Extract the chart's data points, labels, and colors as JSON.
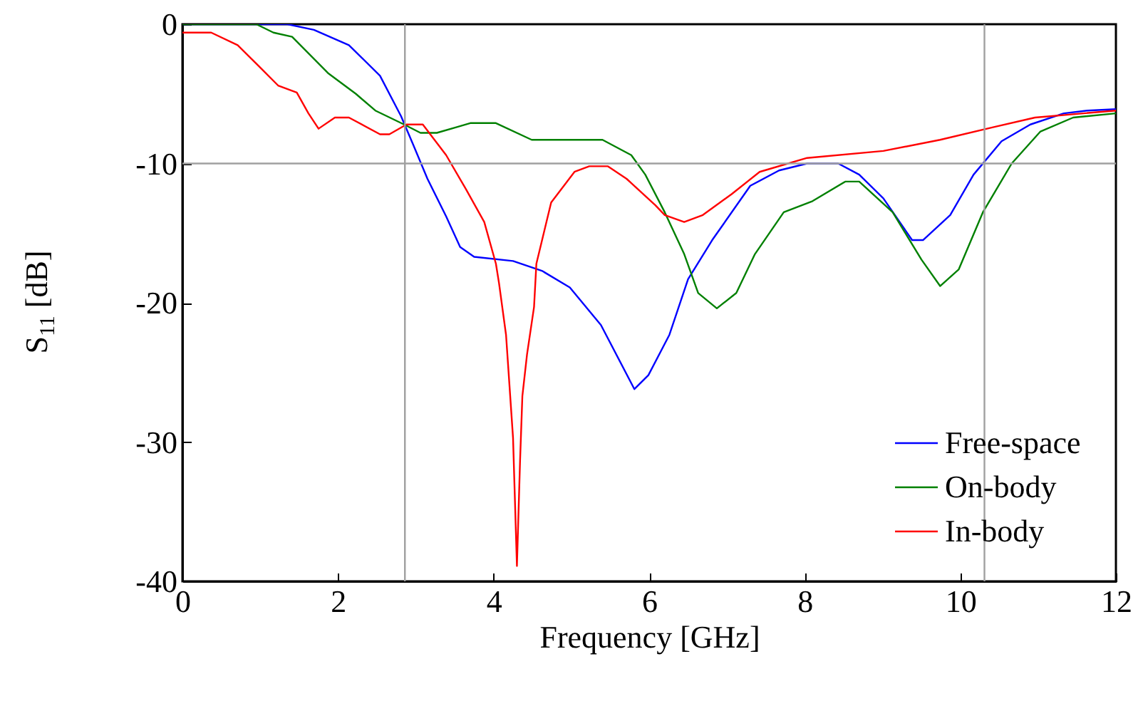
{
  "chart_data": {
    "type": "line",
    "xlabel": "Frequency [GHz]",
    "ylabel": "S$_{11}$ [dB]",
    "xlim": [
      0,
      12
    ],
    "ylim": [
      -40,
      0
    ],
    "xticks": [
      0,
      2,
      4,
      6,
      8,
      10,
      12
    ],
    "yticks": [
      -40,
      -30,
      -20,
      -10,
      0
    ],
    "legend": "bottom right",
    "line_style": "solid",
    "marker": "none",
    "ref_lines": [
      {
        "axis": "x",
        "value": 2.86,
        "color": "#a0a0a0"
      },
      {
        "axis": "x",
        "value": 10.31,
        "color": "#a0a0a0"
      },
      {
        "axis": "y",
        "value": -10,
        "color": "#a0a0a0"
      }
    ],
    "series": [
      {
        "name": "Free-space",
        "color": "#0000ff",
        "x": [
          0,
          1.35,
          1.69,
          2.14,
          2.54,
          2.81,
          2.97,
          3.15,
          3.39,
          3.57,
          3.75,
          4.25,
          4.62,
          4.98,
          5.38,
          5.81,
          5.99,
          6.26,
          6.5,
          6.81,
          7.3,
          7.67,
          8.03,
          8.43,
          8.7,
          9.01,
          9.38,
          9.52,
          9.87,
          10.17,
          10.53,
          10.9,
          11.33,
          11.63,
          12
        ],
        "values": [
          0,
          0,
          -0.4,
          -1.5,
          -3.7,
          -6.6,
          -8.7,
          -11.1,
          -13.8,
          -16,
          -16.7,
          -17,
          -17.7,
          -18.9,
          -21.6,
          -26.2,
          -25.2,
          -22.3,
          -18.3,
          -15.5,
          -11.6,
          -10.5,
          -10,
          -10,
          -10.8,
          -12.5,
          -15.5,
          -15.5,
          -13.7,
          -10.8,
          -8.4,
          -7.2,
          -6.4,
          -6.2,
          -6.1
        ]
      },
      {
        "name": "On-body",
        "color": "#008000",
        "x": [
          0,
          0.95,
          1.17,
          1.41,
          1.87,
          2.23,
          2.48,
          2.85,
          3.06,
          3.27,
          3.52,
          3.7,
          4.03,
          4.49,
          5.4,
          5.77,
          5.95,
          6.2,
          6.45,
          6.63,
          6.87,
          7.12,
          7.36,
          7.73,
          8.1,
          8.52,
          8.7,
          9.13,
          9.5,
          9.74,
          9.98,
          10.29,
          10.66,
          11.03,
          11.45,
          12
        ],
        "values": [
          0,
          0,
          -0.6,
          -0.9,
          -3.5,
          -5,
          -6.2,
          -7.2,
          -7.8,
          -7.8,
          -7.4,
          -7.1,
          -7.1,
          -8.3,
          -8.3,
          -9.4,
          -10.8,
          -13.5,
          -16.5,
          -19.3,
          -20.4,
          -19.3,
          -16.5,
          -13.5,
          -12.7,
          -11.3,
          -11.3,
          -13.5,
          -16.9,
          -18.8,
          -17.6,
          -13.5,
          -10,
          -7.7,
          -6.7,
          -6.4
        ]
      },
      {
        "name": "In-body",
        "color": "#ff0000",
        "x": [
          0,
          0.37,
          0.71,
          0.98,
          1.23,
          1.47,
          1.62,
          1.75,
          1.96,
          2.14,
          2.54,
          2.66,
          2.88,
          3.09,
          3.39,
          3.64,
          3.88,
          4.03,
          4.07,
          4.16,
          4.25,
          4.3,
          4.34,
          4.37,
          4.43,
          4.52,
          4.55,
          4.74,
          5.04,
          5.23,
          5.47,
          5.71,
          6.08,
          6.2,
          6.45,
          6.69,
          7.06,
          7.42,
          8.03,
          9.01,
          9.74,
          10.42,
          10.96,
          12
        ],
        "values": [
          -0.6,
          -0.6,
          -1.5,
          -3,
          -4.4,
          -4.9,
          -6.4,
          -7.5,
          -6.7,
          -6.7,
          -7.9,
          -7.9,
          -7.2,
          -7.2,
          -9.4,
          -11.8,
          -14.2,
          -17.2,
          -18.6,
          -22.3,
          -29.7,
          -38.9,
          -31.4,
          -26.7,
          -23.7,
          -20.3,
          -17.2,
          -12.8,
          -10.6,
          -10.2,
          -10.2,
          -11.1,
          -13,
          -13.7,
          -14.2,
          -13.7,
          -12.2,
          -10.6,
          -9.6,
          -9.1,
          -8.3,
          -7.4,
          -6.7,
          -6.2
        ]
      }
    ]
  }
}
